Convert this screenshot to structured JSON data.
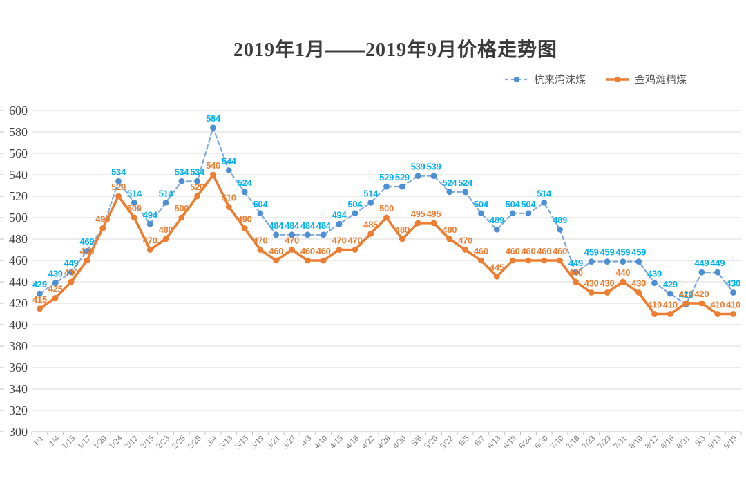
{
  "title": "2019年1月——2019年9月价格走势图",
  "chart_data": {
    "type": "line",
    "title": "2019年1月——2019年9月价格走势图",
    "xlabel": "",
    "ylabel": "",
    "ylim": [
      300,
      600
    ],
    "ytick_step": 20,
    "grid": true,
    "legend_position": "top-right",
    "data_labels": true,
    "categories": [
      "1/1",
      "1/4",
      "1/15",
      "1/17",
      "1/20",
      "1/24",
      "2/12",
      "2/15",
      "2/23",
      "2/26",
      "2/28",
      "3/4",
      "3/13",
      "3/15",
      "3/19",
      "3/21",
      "3/27",
      "4/3",
      "4/10",
      "4/15",
      "4/18",
      "4/22",
      "4/26",
      "4/30",
      "5/8",
      "5/20",
      "5/22",
      "6/5",
      "6/7",
      "6/13",
      "6/19",
      "6/24",
      "6/30",
      "7/10",
      "7/18",
      "7/23",
      "7/29",
      "7/31",
      "8/10",
      "8/12",
      "8/16",
      "8/31",
      "9/3",
      "9/13",
      "9/19"
    ],
    "series": [
      {
        "name": "杭来湾沫煤",
        "style": "dashed",
        "color": "#7FA8DC",
        "marker_color": "#4D8FD3",
        "label_color": "#00B0F0",
        "values": [
          429,
          439,
          449,
          469,
          490,
          534,
          514,
          494,
          514,
          534,
          534,
          584,
          544,
          524,
          504,
          484,
          484,
          484,
          484,
          494,
          504,
          514,
          529,
          529,
          539,
          539,
          524,
          524,
          504,
          489,
          504,
          504,
          514,
          489,
          449,
          459,
          459,
          459,
          459,
          439,
          429,
          419,
          449,
          449,
          430
        ]
      },
      {
        "name": "金鸡滩精煤",
        "style": "solid",
        "color": "#ED7D31",
        "marker_color": "#ED7D31",
        "label_color": "#ED7D31",
        "values": [
          415,
          425,
          440,
          460,
          490,
          520,
          500,
          470,
          480,
          500,
          520,
          540,
          510,
          490,
          470,
          460,
          470,
          460,
          460,
          470,
          470,
          485,
          500,
          480,
          495,
          495,
          480,
          470,
          460,
          445,
          460,
          460,
          460,
          460,
          440,
          430,
          430,
          440,
          430,
          410,
          410,
          420,
          420,
          410,
          410
        ]
      }
    ],
    "colors": {
      "grid": "#D9D9D9",
      "axis": "#BFBFBF",
      "tick_label": "#595959",
      "title": "#3B3B3B"
    }
  }
}
